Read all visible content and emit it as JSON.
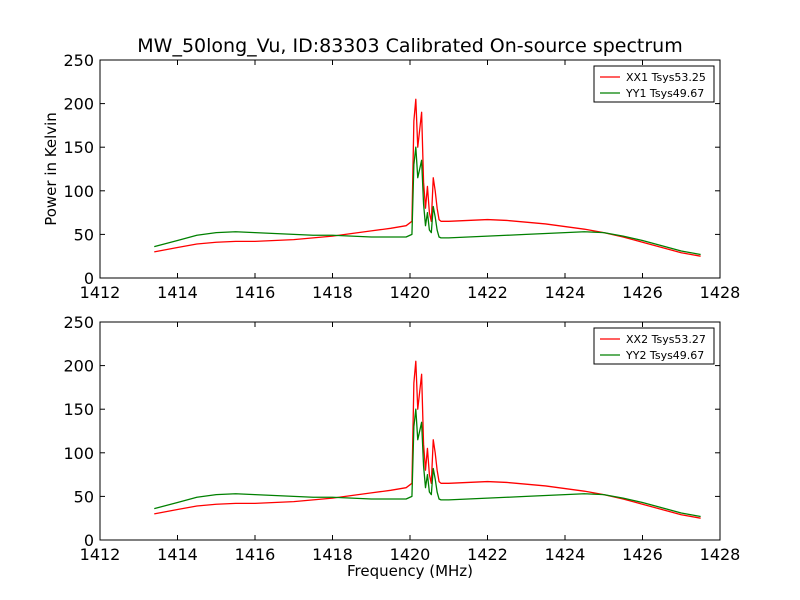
{
  "title": "MW_50long_Vu, ID:83303 Calibrated On-source spectrum",
  "chart_data": [
    {
      "type": "line",
      "title": "MW_50long_Vu, ID:83303 Calibrated On-source spectrum",
      "xlabel": "",
      "ylabel": "Power in Kelvin",
      "xlim": [
        1412,
        1428
      ],
      "ylim": [
        0,
        250
      ],
      "xticks": [
        1412,
        1414,
        1416,
        1418,
        1420,
        1422,
        1424,
        1426,
        1428
      ],
      "yticks": [
        0,
        50,
        100,
        150,
        200,
        250
      ],
      "grid": false,
      "legend_position": "top-right",
      "series": [
        {
          "name": "XX1 Tsys53.25",
          "color": "#ff0000",
          "x": [
            1413.4,
            1414.0,
            1414.5,
            1415.0,
            1415.5,
            1416.0,
            1416.5,
            1417.0,
            1417.5,
            1418.0,
            1418.5,
            1419.0,
            1419.5,
            1419.9,
            1420.05,
            1420.1,
            1420.15,
            1420.2,
            1420.25,
            1420.3,
            1420.35,
            1420.4,
            1420.45,
            1420.5,
            1420.55,
            1420.6,
            1420.65,
            1420.7,
            1420.75,
            1420.8,
            1421.0,
            1421.5,
            1422.0,
            1422.5,
            1423.0,
            1423.5,
            1424.0,
            1424.5,
            1425.0,
            1425.5,
            1426.0,
            1426.5,
            1427.0,
            1427.5
          ],
          "y": [
            30,
            35,
            39,
            41,
            42,
            42,
            43,
            44,
            46,
            48,
            51,
            54,
            57,
            60,
            65,
            180,
            205,
            150,
            170,
            190,
            110,
            80,
            105,
            75,
            65,
            115,
            100,
            80,
            67,
            65,
            65,
            66,
            67,
            66,
            64,
            62,
            59,
            56,
            52,
            47,
            41,
            35,
            29,
            25
          ]
        },
        {
          "name": "YY1 Tsys49.67",
          "color": "#008000",
          "x": [
            1413.4,
            1414.0,
            1414.5,
            1415.0,
            1415.5,
            1416.0,
            1416.5,
            1417.0,
            1417.5,
            1418.0,
            1418.5,
            1419.0,
            1419.5,
            1419.9,
            1420.05,
            1420.1,
            1420.15,
            1420.2,
            1420.25,
            1420.3,
            1420.35,
            1420.4,
            1420.45,
            1420.5,
            1420.55,
            1420.6,
            1420.65,
            1420.7,
            1420.75,
            1420.8,
            1421.0,
            1421.5,
            1422.0,
            1422.5,
            1423.0,
            1423.5,
            1424.0,
            1424.5,
            1425.0,
            1425.5,
            1426.0,
            1426.5,
            1427.0,
            1427.5
          ],
          "y": [
            36,
            43,
            49,
            52,
            53,
            52,
            51,
            50,
            49,
            49,
            48,
            47,
            47,
            47,
            50,
            130,
            150,
            115,
            125,
            135,
            85,
            60,
            75,
            55,
            52,
            82,
            70,
            55,
            47,
            46,
            46,
            47,
            48,
            49,
            50,
            51,
            52,
            53,
            52,
            48,
            43,
            37,
            31,
            27
          ]
        }
      ]
    },
    {
      "type": "line",
      "title": "",
      "xlabel": "Frequency (MHz)",
      "ylabel": "",
      "xlim": [
        1412,
        1428
      ],
      "ylim": [
        0,
        250
      ],
      "xticks": [
        1412,
        1414,
        1416,
        1418,
        1420,
        1422,
        1424,
        1426,
        1428
      ],
      "yticks": [
        0,
        50,
        100,
        150,
        200,
        250
      ],
      "grid": false,
      "legend_position": "top-right",
      "series": [
        {
          "name": "XX2 Tsys53.27",
          "color": "#ff0000",
          "x": [
            1413.4,
            1414.0,
            1414.5,
            1415.0,
            1415.5,
            1416.0,
            1416.5,
            1417.0,
            1417.5,
            1418.0,
            1418.5,
            1419.0,
            1419.5,
            1419.9,
            1420.05,
            1420.1,
            1420.15,
            1420.2,
            1420.25,
            1420.3,
            1420.35,
            1420.4,
            1420.45,
            1420.5,
            1420.55,
            1420.6,
            1420.65,
            1420.7,
            1420.75,
            1420.8,
            1421.0,
            1421.5,
            1422.0,
            1422.5,
            1423.0,
            1423.5,
            1424.0,
            1424.5,
            1425.0,
            1425.5,
            1426.0,
            1426.5,
            1427.0,
            1427.5
          ],
          "y": [
            30,
            35,
            39,
            41,
            42,
            42,
            43,
            44,
            46,
            48,
            51,
            54,
            57,
            60,
            65,
            180,
            205,
            150,
            170,
            190,
            110,
            80,
            105,
            75,
            65,
            115,
            100,
            80,
            67,
            65,
            65,
            66,
            67,
            66,
            64,
            62,
            59,
            56,
            52,
            47,
            41,
            35,
            29,
            25
          ]
        },
        {
          "name": "YY2 Tsys49.67",
          "color": "#008000",
          "x": [
            1413.4,
            1414.0,
            1414.5,
            1415.0,
            1415.5,
            1416.0,
            1416.5,
            1417.0,
            1417.5,
            1418.0,
            1418.5,
            1419.0,
            1419.5,
            1419.9,
            1420.05,
            1420.1,
            1420.15,
            1420.2,
            1420.25,
            1420.3,
            1420.35,
            1420.4,
            1420.45,
            1420.5,
            1420.55,
            1420.6,
            1420.65,
            1420.7,
            1420.75,
            1420.8,
            1421.0,
            1421.5,
            1422.0,
            1422.5,
            1423.0,
            1423.5,
            1424.0,
            1424.5,
            1425.0,
            1425.5,
            1426.0,
            1426.5,
            1427.0,
            1427.5
          ],
          "y": [
            36,
            43,
            49,
            52,
            53,
            52,
            51,
            50,
            49,
            49,
            48,
            47,
            47,
            47,
            50,
            130,
            150,
            115,
            125,
            135,
            85,
            60,
            75,
            55,
            52,
            82,
            70,
            55,
            47,
            46,
            46,
            47,
            48,
            49,
            50,
            51,
            52,
            53,
            52,
            48,
            43,
            37,
            31,
            27
          ]
        }
      ]
    }
  ]
}
